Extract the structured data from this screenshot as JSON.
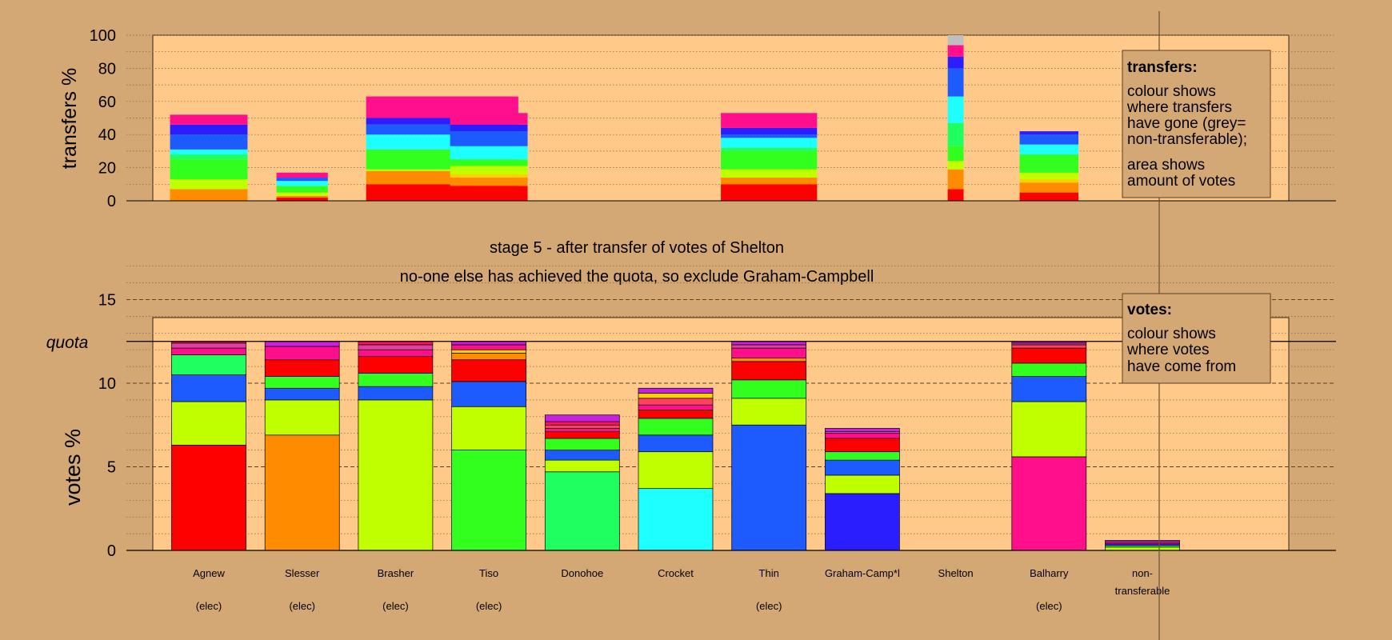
{
  "chart_data": [
    {
      "type": "bar",
      "stacked": true,
      "ylabel": "transfers %",
      "ylim": [
        0,
        100
      ],
      "yticks": [
        0,
        20,
        40,
        60,
        80,
        100
      ],
      "grid": "horizontal dotted every 10",
      "bars": [
        {
          "center": 1.0,
          "width": 0.83,
          "segments": [
            {
              "color": "#FF8C00",
              "value": 7
            },
            {
              "color": "#BFFF00",
              "value": 6
            },
            {
              "color": "#32FF1E",
              "value": 12
            },
            {
              "color": "#20FF60",
              "value": 3
            },
            {
              "color": "#1EFFFF",
              "value": 3
            },
            {
              "color": "#1E5BFF",
              "value": 9
            },
            {
              "color": "#2A1EFF",
              "value": 6
            },
            {
              "color": "#FF0F8C",
              "value": 6
            }
          ]
        },
        {
          "center": 2.0,
          "width": 0.55,
          "segments": [
            {
              "color": "#FF0000",
              "value": 2
            },
            {
              "color": "#FF8C00",
              "value": 1
            },
            {
              "color": "#BFFF00",
              "value": 2
            },
            {
              "color": "#32FF1E",
              "value": 4
            },
            {
              "color": "#1EFFFF",
              "value": 3
            },
            {
              "color": "#1E5BFF",
              "value": 2
            },
            {
              "color": "#FF0F8C",
              "value": 3
            }
          ]
        },
        {
          "center": 3.5,
          "width": 1.63,
          "segments": [
            {
              "color": "#FF0000",
              "value": 10
            },
            {
              "color": "#FF8C00",
              "value": 8
            },
            {
              "color": "#BFFF00",
              "value": 1
            },
            {
              "color": "#32FF1E",
              "value": 12
            },
            {
              "color": "#1EFFFF",
              "value": 9
            },
            {
              "color": "#1E5BFF",
              "value": 6
            },
            {
              "color": "#2A1EFF",
              "value": 4
            },
            {
              "color": "#FF0F8C",
              "value": 13
            }
          ]
        },
        {
          "center": 4.0,
          "width": 0.83,
          "segments": [
            {
              "color": "#FF0000",
              "value": 9
            },
            {
              "color": "#FF8C00",
              "value": 5
            },
            {
              "color": "#FFD000",
              "value": 2
            },
            {
              "color": "#BFFF00",
              "value": 5
            },
            {
              "color": "#32FF1E",
              "value": 4
            },
            {
              "color": "#1EFFFF",
              "value": 8
            },
            {
              "color": "#1E5BFF",
              "value": 9
            },
            {
              "color": "#2A1EFF",
              "value": 4
            },
            {
              "color": "#FF0F8C",
              "value": 7
            }
          ]
        },
        {
          "center": 7.0,
          "width": 1.03,
          "segments": [
            {
              "color": "#FF0000",
              "value": 10
            },
            {
              "color": "#FF8C00",
              "value": 4
            },
            {
              "color": "#BFFF00",
              "value": 5
            },
            {
              "color": "#32FF1E",
              "value": 11
            },
            {
              "color": "#20FF60",
              "value": 2
            },
            {
              "color": "#1EFFFF",
              "value": 6
            },
            {
              "color": "#1E5BFF",
              "value": 2
            },
            {
              "color": "#2A1EFF",
              "value": 4
            },
            {
              "color": "#FF0F8C",
              "value": 9
            }
          ]
        },
        {
          "center": 9.0,
          "width": 0.17,
          "segments": [
            {
              "color": "#FF0000",
              "value": 7
            },
            {
              "color": "#FF8C00",
              "value": 12
            },
            {
              "color": "#BFFF00",
              "value": 5
            },
            {
              "color": "#32FF1E",
              "value": 9
            },
            {
              "color": "#20FF60",
              "value": 14
            },
            {
              "color": "#1EFFFF",
              "value": 16
            },
            {
              "color": "#1E5BFF",
              "value": 17
            },
            {
              "color": "#2A1EFF",
              "value": 7
            },
            {
              "color": "#FF0F8C",
              "value": 7
            },
            {
              "color": "#BFBFBF",
              "value": 6
            }
          ]
        },
        {
          "center": 10.0,
          "width": 0.63,
          "segments": [
            {
              "color": "#FF0000",
              "value": 5
            },
            {
              "color": "#FF8C00",
              "value": 6
            },
            {
              "color": "#FFD000",
              "value": 2
            },
            {
              "color": "#BFFF00",
              "value": 4
            },
            {
              "color": "#32FF1E",
              "value": 11
            },
            {
              "color": "#1EFFFF",
              "value": 6
            },
            {
              "color": "#1E5BFF",
              "value": 6
            },
            {
              "color": "#2A1EFF",
              "value": 2
            }
          ]
        }
      ]
    },
    {
      "type": "bar",
      "stacked": true,
      "ylabel": "votes %",
      "ylim": [
        0,
        18
      ],
      "yticks": [
        0,
        5,
        10,
        15
      ],
      "quota": 12.5,
      "quota_label": "quota",
      "grid": "horizontal dotted every 1, dashed every 5",
      "categories": [
        "Agnew",
        "Slesser",
        "Brasher",
        "Tiso",
        "Donohoe",
        "Crocket",
        "Thin",
        "Graham-Camp*l",
        "Shelton",
        "Balharry",
        "non-\ntransferable"
      ],
      "elected": [
        true,
        true,
        true,
        true,
        false,
        false,
        true,
        false,
        false,
        true,
        false
      ],
      "elected_label": "(elec)",
      "stacks": [
        [
          {
            "color": "#FF0000",
            "value": 6.3
          },
          {
            "color": "#BFFF00",
            "value": 2.6
          },
          {
            "color": "#32FF1E",
            "value": 0
          },
          {
            "color": "#1E5BFF",
            "value": 1.6
          },
          {
            "color": "#20FF60",
            "value": 1.2
          },
          {
            "color": "#FF0F8C",
            "value": 0.4
          },
          {
            "color": "#E040A0",
            "value": 0.3
          },
          {
            "color": "#FF1060",
            "value": 0.1
          }
        ],
        [
          {
            "color": "#FF8C00",
            "value": 6.9
          },
          {
            "color": "#BFFF00",
            "value": 2.1
          },
          {
            "color": "#1E5BFF",
            "value": 0.7
          },
          {
            "color": "#32FF1E",
            "value": 0.7
          },
          {
            "color": "#FF0000",
            "value": 1.0
          },
          {
            "color": "#FF0F8C",
            "value": 0.8
          },
          {
            "color": "#C820E0",
            "value": 0.3
          }
        ],
        [
          {
            "color": "#BFFF00",
            "value": 9.0
          },
          {
            "color": "#1E5BFF",
            "value": 0.8
          },
          {
            "color": "#32FF1E",
            "value": 0.8
          },
          {
            "color": "#FF0000",
            "value": 1.0
          },
          {
            "color": "#FF0F8C",
            "value": 0.4
          },
          {
            "color": "#E040A0",
            "value": 0.3
          },
          {
            "color": "#FF1060",
            "value": 0.2
          }
        ],
        [
          {
            "color": "#32FF1E",
            "value": 6.0
          },
          {
            "color": "#BFFF00",
            "value": 2.6
          },
          {
            "color": "#1E5BFF",
            "value": 1.5
          },
          {
            "color": "#FF0000",
            "value": 1.3
          },
          {
            "color": "#FF8C00",
            "value": 0.4
          },
          {
            "color": "#FFD000",
            "value": 0.2
          },
          {
            "color": "#FF0F8C",
            "value": 0.3
          },
          {
            "color": "#C820E0",
            "value": 0.2
          }
        ],
        [
          {
            "color": "#20FF60",
            "value": 4.7
          },
          {
            "color": "#BFFF00",
            "value": 0.7
          },
          {
            "color": "#1E5BFF",
            "value": 0.6
          },
          {
            "color": "#32FF1E",
            "value": 0.7
          },
          {
            "color": "#FF0000",
            "value": 0.4
          },
          {
            "color": "#FF0F8C",
            "value": 0.2
          },
          {
            "color": "#FF4060",
            "value": 0.2
          },
          {
            "color": "#FF1060",
            "value": 0.2
          },
          {
            "color": "#C820E0",
            "value": 0.4
          }
        ],
        [
          {
            "color": "#1EFFFF",
            "value": 3.7
          },
          {
            "color": "#BFFF00",
            "value": 2.2
          },
          {
            "color": "#1E5BFF",
            "value": 1.0
          },
          {
            "color": "#32FF1E",
            "value": 1.0
          },
          {
            "color": "#FF0000",
            "value": 0.5
          },
          {
            "color": "#FF0F8C",
            "value": 0.3
          },
          {
            "color": "#FF4060",
            "value": 0.4
          },
          {
            "color": "#FFD000",
            "value": 0.3
          },
          {
            "color": "#C820E0",
            "value": 0.3
          }
        ],
        [
          {
            "color": "#1E5BFF",
            "value": 7.5
          },
          {
            "color": "#BFFF00",
            "value": 1.6
          },
          {
            "color": "#32FF1E",
            "value": 1.1
          },
          {
            "color": "#FF0000",
            "value": 1.1
          },
          {
            "color": "#FF8C00",
            "value": 0.2
          },
          {
            "color": "#FF0F8C",
            "value": 0.6
          },
          {
            "color": "#E040A0",
            "value": 0.2
          },
          {
            "color": "#C820E0",
            "value": 0.2
          }
        ],
        [
          {
            "color": "#2A1EFF",
            "value": 3.4
          },
          {
            "color": "#BFFF00",
            "value": 1.1
          },
          {
            "color": "#1E5BFF",
            "value": 0.9
          },
          {
            "color": "#32FF1E",
            "value": 0.5
          },
          {
            "color": "#FF0000",
            "value": 0.8
          },
          {
            "color": "#FF0F8C",
            "value": 0.3
          },
          {
            "color": "#E040A0",
            "value": 0.1
          },
          {
            "color": "#C820E0",
            "value": 0.2
          }
        ],
        [],
        [
          {
            "color": "#FF0F8C",
            "value": 5.6
          },
          {
            "color": "#BFFF00",
            "value": 3.3
          },
          {
            "color": "#1E5BFF",
            "value": 1.5
          },
          {
            "color": "#32FF1E",
            "value": 0.8
          },
          {
            "color": "#FF0000",
            "value": 0.9
          },
          {
            "color": "#FF4060",
            "value": 0.2
          },
          {
            "color": "#E040A0",
            "value": 0.1
          },
          {
            "color": "#C820E0",
            "value": 0.1
          }
        ],
        [
          {
            "color": "#BFFF00",
            "value": 0.2
          },
          {
            "color": "#32FF1E",
            "value": 0.1
          },
          {
            "color": "#2A1EFF",
            "value": 0.1
          },
          {
            "color": "#FF0F8C",
            "value": 0.1
          },
          {
            "color": "#C820E0",
            "value": 0.1
          }
        ]
      ]
    }
  ],
  "stage_text": "stage 5 - after transfer of votes of Shelton",
  "status_text": "no-one else has achieved the quota, so exclude Graham-Campbell",
  "legend_transfers": {
    "title": "transfers:",
    "lines1": [
      "colour shows",
      "where transfers",
      "have gone (grey=",
      "non-transferable);"
    ],
    "lines2": [
      "area shows",
      "amount of votes"
    ]
  },
  "legend_votes": {
    "title": "votes:",
    "lines": [
      "colour shows",
      "where votes",
      "have come from"
    ]
  }
}
